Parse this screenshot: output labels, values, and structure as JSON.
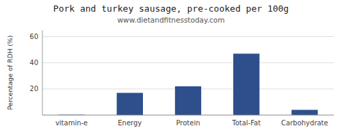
{
  "chart_data": {
    "type": "bar",
    "title": "Pork and turkey sausage, pre-cooked per 100g",
    "subtitle": "www.dietandfitnesstoday.com",
    "categories": [
      "vitamin-e",
      "Energy",
      "Protein",
      "Total-Fat",
      "Carbohydrate"
    ],
    "values": [
      0.3,
      17,
      22,
      47,
      4
    ],
    "color": "#2e4f8c",
    "ylabel": "Percentage of RDH (%)",
    "ylim": [
      0,
      65
    ],
    "yticks": [
      20,
      40,
      60
    ],
    "grid": true
  }
}
